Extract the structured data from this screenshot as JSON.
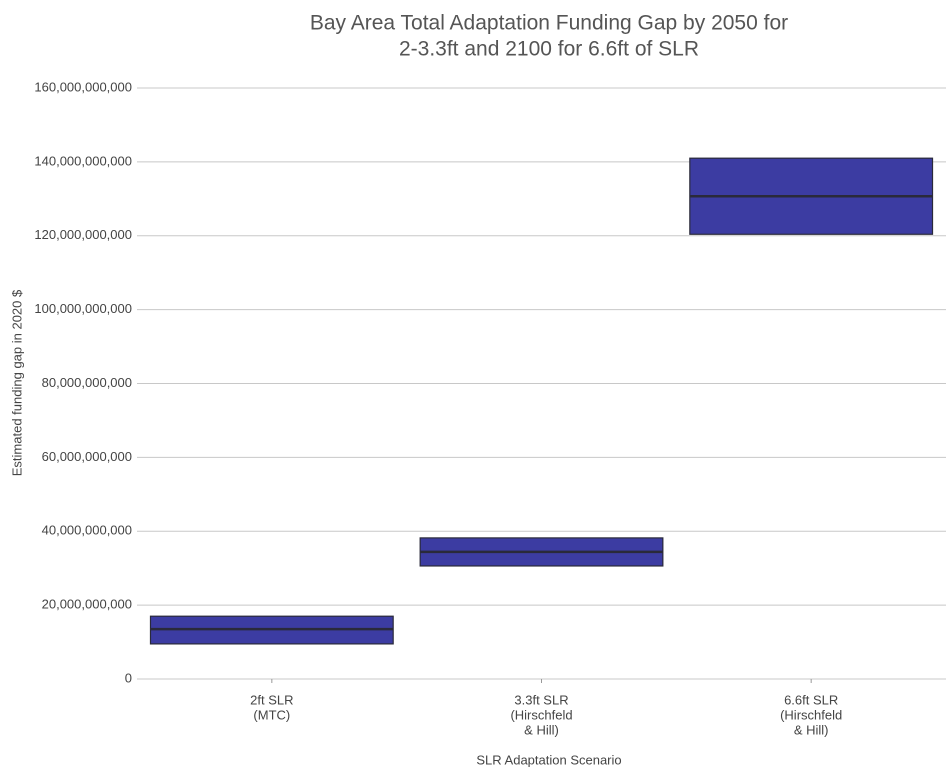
{
  "chart_data": {
    "type": "crossbar",
    "title": [
      "Bay Area Total Adaptation Funding Gap by 2050 for",
      "2-3.3ft and 2100 for 6.6ft of SLR"
    ],
    "x_label": "SLR Adaptation Scenario",
    "y_label": "Estimated funding gap in 2020 $",
    "categories": [
      [
        "2ft SLR",
        "(MTC)"
      ],
      [
        "3.3ft SLR",
        "(Hirschfeld",
        "& Hill)"
      ],
      [
        "6.6ft SLR",
        "(Hirschfeld",
        "& Hill)"
      ]
    ],
    "lower": [
      9500000000,
      30600000000,
      120400000000
    ],
    "middle": [
      13500000000,
      34400000000,
      130700000000
    ],
    "upper": [
      17000000000,
      38200000000,
      141000000000
    ],
    "color": "#3c3ca2",
    "ylim": [
      0,
      160000000000
    ],
    "yticks": [
      0,
      {
        "value": 20000000000,
        "label": "20,000,000,000"
      },
      {
        "value": 40000000000,
        "label": "40,000,000,000"
      },
      {
        "value": 60000000000,
        "label": "60,000,000,000"
      },
      {
        "value": 80000000000,
        "label": "80,000,000,000"
      },
      {
        "value": 100000000000,
        "label": "100,000,000,000"
      },
      {
        "value": 120000000000,
        "label": "120,000,000,000"
      },
      {
        "value": 140000000000,
        "label": "140,000,000,000"
      },
      {
        "value": 160000000000,
        "label": "160,000,000,000"
      }
    ],
    "grid": true
  }
}
